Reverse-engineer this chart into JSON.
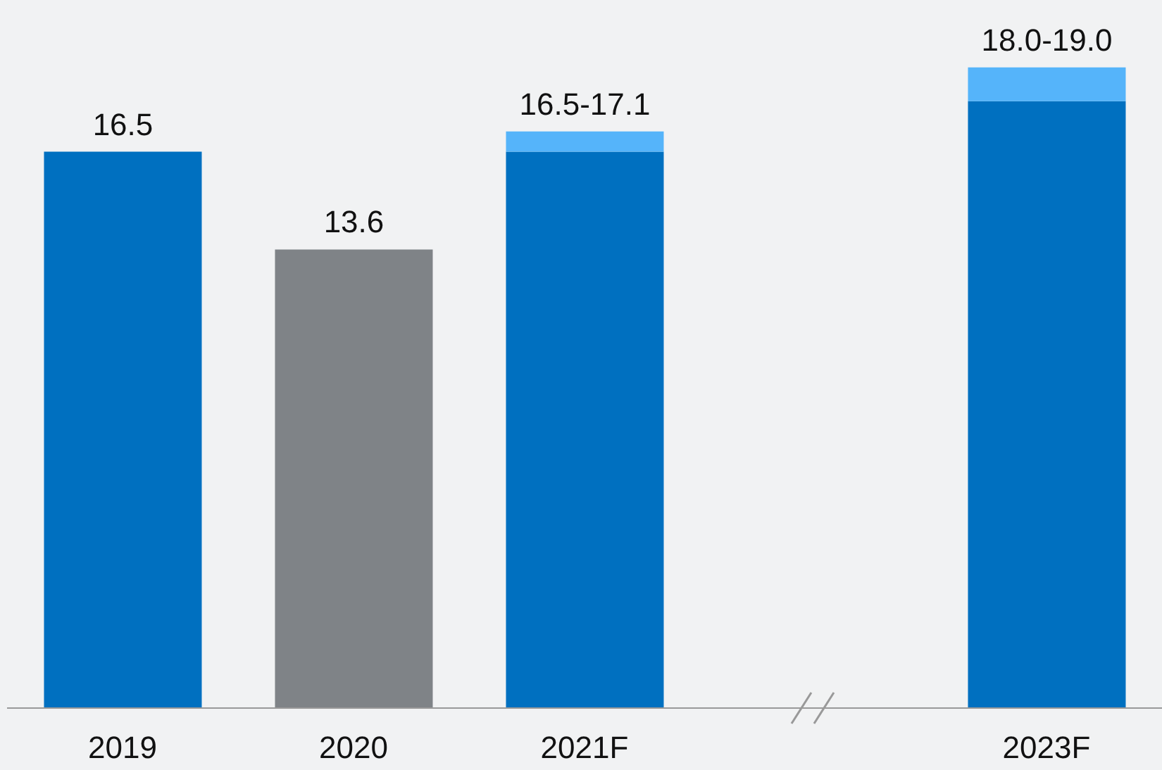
{
  "chart_data": {
    "type": "bar",
    "stacked": true,
    "categories": [
      "2019",
      "2020",
      "2021F",
      null,
      "2023F"
    ],
    "series": [
      {
        "colors": [
          "#0070c0",
          "#7f8387",
          "#0070c0",
          "#0070c0",
          "#0070c0"
        ],
        "values": [
          16.5,
          13.6,
          16.5,
          null,
          18.0
        ],
        "value_labels": [
          "16.5",
          "13.6",
          null,
          null,
          null
        ]
      },
      {
        "color": "#55b4fa",
        "values": [
          null,
          null,
          0.6,
          null,
          1.0
        ],
        "value_labels": [
          null,
          null,
          "16.5-17.1",
          null,
          "18.0-19.0"
        ]
      }
    ],
    "ylim": [
      0,
      21
    ],
    "tick_labels": "x"
  }
}
